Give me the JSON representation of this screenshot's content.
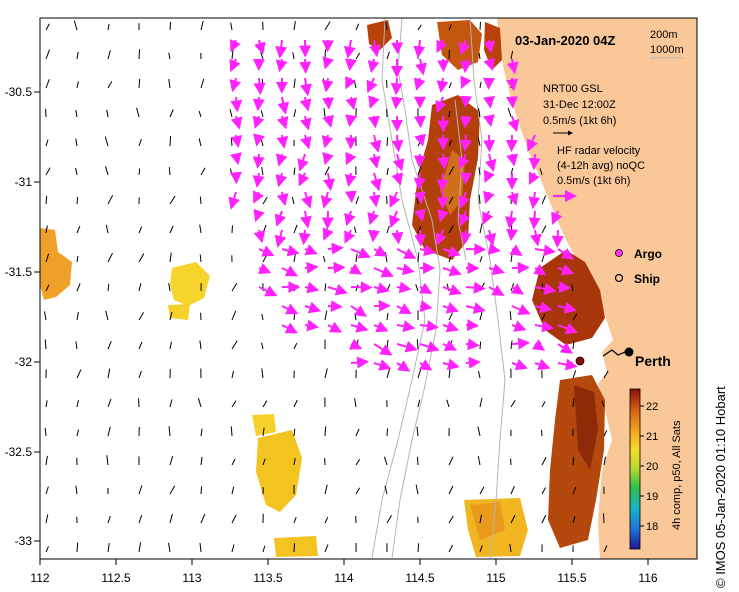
{
  "title": "03-Jan-2020 04Z",
  "depth_contours": [
    "200m",
    "1000m"
  ],
  "model_block": {
    "name": "NRT00 GSL",
    "date": "31-Dec 12:00Z",
    "scale_label": "0.5m/s (1kt 6h)"
  },
  "radar_block": {
    "line1": "HF radar velocity",
    "line2": "(4-12h avg) noQC",
    "scale_label": "0.5m/s (1kt 6h)"
  },
  "legend": {
    "argo_label": "Argo",
    "ship_label": "Ship",
    "argo_color": "#ff33ff",
    "ship_color": "#000000"
  },
  "city": "Perth",
  "colorbar": {
    "label": "4h comp, p50, All Sats",
    "min": 17.5,
    "max": 22.8,
    "ticks": [
      "22",
      "21",
      "20",
      "19",
      "18"
    ]
  },
  "x_axis": {
    "ticks": [
      "112",
      "112.5",
      "113",
      "113.5",
      "114",
      "114.5",
      "115",
      "115.5",
      "116"
    ]
  },
  "y_axis": {
    "ticks": [
      "-30.5",
      "-31",
      "-31.5",
      "-32",
      "-32.5",
      "-33"
    ]
  },
  "credit": "© IMOS 05-Jan-2020 01:10 Hobart",
  "colors": {
    "land": "#fac898",
    "vector_magenta": "#ff22ff",
    "bathymetry": "#b4b4b4",
    "sst_warm": "#b8420a",
    "sst_cool": "#f5c020"
  }
}
